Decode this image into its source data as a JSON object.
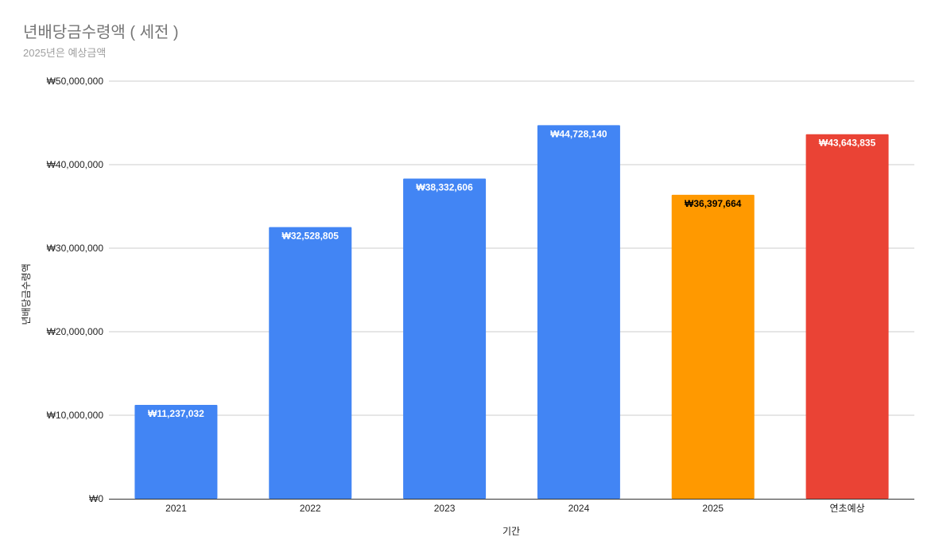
{
  "chart_data": {
    "type": "bar",
    "title": "년배당금수령액 ( 세전 )",
    "subtitle": "2025년은 예상금액",
    "xlabel": "기간",
    "ylabel": "년배당금수령액",
    "ylim": [
      0,
      50000000
    ],
    "y_ticks": [
      0,
      10000000,
      20000000,
      30000000,
      40000000,
      50000000
    ],
    "y_tick_labels": [
      "₩0",
      "₩10,000,000",
      "₩20,000,000",
      "₩30,000,000",
      "₩40,000,000",
      "₩50,000,000"
    ],
    "grid": true,
    "legend": "none",
    "categories": [
      "2021",
      "2022",
      "2023",
      "2024",
      "2025",
      "연초예상"
    ],
    "values": [
      11237032,
      32528805,
      38332606,
      44728140,
      36397664,
      43643835
    ],
    "data_labels": [
      "₩11,237,032",
      "₩32,528,805",
      "₩38,332,606",
      "₩44,728,140",
      "₩36,397,664",
      "₩43,643,835"
    ],
    "bar_colors": [
      "#4285f4",
      "#4285f4",
      "#4285f4",
      "#4285f4",
      "#ff9900",
      "#ea4335"
    ],
    "label_colors": [
      "#ffffff",
      "#ffffff",
      "#ffffff",
      "#ffffff",
      "#000000",
      "#ffffff"
    ],
    "gridline_color": "#cccccc",
    "axis_color": "#333333"
  }
}
